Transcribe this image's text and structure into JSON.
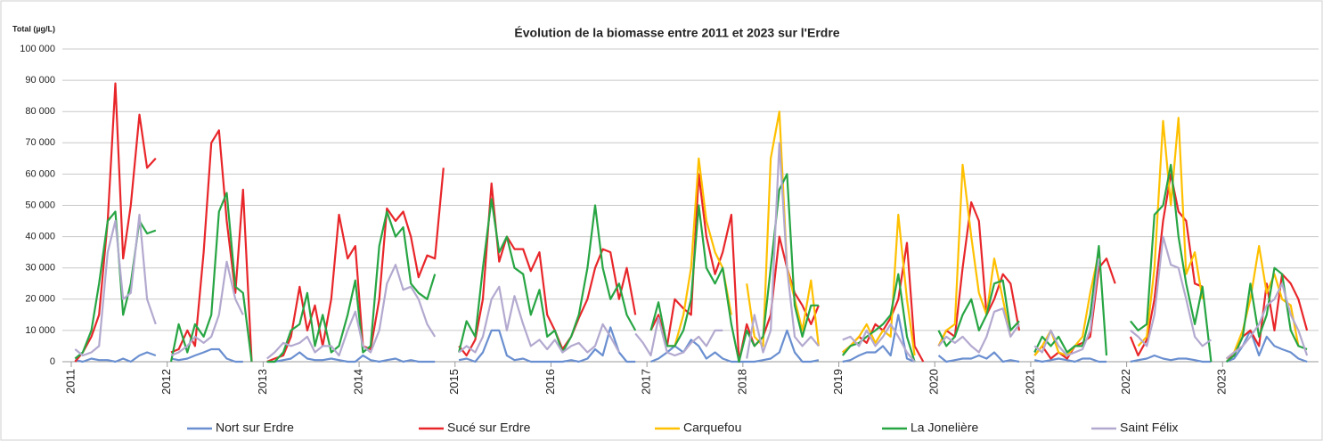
{
  "chart_data": {
    "type": "line",
    "title": "Évolution de la biomasse entre 2011 et 2023 sur l'Erdre",
    "y_label": "Total (µg/L)",
    "xlim": [
      2011,
      2024
    ],
    "xticks": [
      2011,
      2012,
      2013,
      2014,
      2015,
      2016,
      2017,
      2018,
      2019,
      2020,
      2021,
      2022,
      2023
    ],
    "ylim": [
      0,
      100000
    ],
    "yticks": [
      0,
      {
        "value": 10000,
        "label": "10 000"
      },
      {
        "value": 20000,
        "label": "20 000"
      },
      {
        "value": 30000,
        "label": "30 000"
      },
      {
        "value": 40000,
        "label": "40 000"
      },
      {
        "value": 50000,
        "label": "50 000"
      },
      {
        "value": 60000,
        "label": "60 000"
      },
      {
        "value": 70000,
        "label": "70 000"
      },
      {
        "value": 80000,
        "label": "80 000"
      },
      {
        "value": 90000,
        "label": "90 000"
      },
      {
        "value": 100000,
        "label": "100 000"
      }
    ],
    "grid": true,
    "legend": "bottom",
    "x": [
      2011.04,
      2011.12,
      2011.21,
      2011.29,
      2011.38,
      2011.46,
      2011.54,
      2011.62,
      2011.71,
      2011.79,
      2011.88,
      2011.96,
      2012.04,
      2012.12,
      2012.21,
      2012.29,
      2012.38,
      2012.46,
      2012.54,
      2012.62,
      2012.71,
      2012.79,
      2012.88,
      2012.96,
      2013.04,
      2013.12,
      2013.21,
      2013.29,
      2013.38,
      2013.46,
      2013.54,
      2013.62,
      2013.71,
      2013.79,
      2013.88,
      2013.96,
      2014.04,
      2014.12,
      2014.21,
      2014.29,
      2014.38,
      2014.46,
      2014.54,
      2014.62,
      2014.71,
      2014.79,
      2014.88,
      2014.96,
      2015.04,
      2015.12,
      2015.21,
      2015.29,
      2015.38,
      2015.46,
      2015.54,
      2015.62,
      2015.71,
      2015.79,
      2015.88,
      2015.96,
      2016.04,
      2016.12,
      2016.21,
      2016.29,
      2016.38,
      2016.46,
      2016.54,
      2016.62,
      2016.71,
      2016.79,
      2016.88,
      2016.96,
      2017.04,
      2017.12,
      2017.21,
      2017.29,
      2017.38,
      2017.46,
      2017.54,
      2017.62,
      2017.71,
      2017.79,
      2017.88,
      2017.96,
      2018.04,
      2018.12,
      2018.21,
      2018.29,
      2018.38,
      2018.46,
      2018.54,
      2018.62,
      2018.71,
      2018.79,
      2018.88,
      2018.96,
      2019.04,
      2019.12,
      2019.21,
      2019.29,
      2019.38,
      2019.46,
      2019.54,
      2019.62,
      2019.71,
      2019.79,
      2019.88,
      2019.96,
      2020.04,
      2020.12,
      2020.21,
      2020.29,
      2020.38,
      2020.46,
      2020.54,
      2020.62,
      2020.71,
      2020.79,
      2020.88,
      2020.96,
      2021.04,
      2021.12,
      2021.21,
      2021.29,
      2021.38,
      2021.46,
      2021.54,
      2021.62,
      2021.71,
      2021.79,
      2021.88,
      2021.96,
      2022.04,
      2022.12,
      2022.21,
      2022.29,
      2022.38,
      2022.46,
      2022.54,
      2022.62,
      2022.71,
      2022.79,
      2022.88,
      2022.96,
      2023.04,
      2023.12,
      2023.21,
      2023.29,
      2023.38,
      2023.46,
      2023.54,
      2023.62,
      2023.71,
      2023.79,
      2023.88,
      2023.96
    ],
    "series": [
      {
        "name": "Nort sur Erdre",
        "color": "#6a8fd0",
        "values": [
          500,
          0,
          1000,
          500,
          500,
          0,
          1000,
          0,
          2000,
          3000,
          2000,
          null,
          1000,
          500,
          1000,
          2000,
          3000,
          4000,
          4000,
          1000,
          0,
          0,
          null,
          null,
          0,
          0,
          500,
          1000,
          3000,
          1000,
          500,
          500,
          1000,
          500,
          0,
          0,
          2000,
          500,
          0,
          500,
          1000,
          0,
          500,
          0,
          0,
          0,
          null,
          null,
          500,
          1000,
          0,
          3000,
          10000,
          10000,
          2000,
          500,
          1000,
          0,
          0,
          0,
          0,
          0,
          500,
          0,
          1000,
          4000,
          2000,
          11000,
          3000,
          0,
          0,
          null,
          0,
          1000,
          3000,
          5000,
          3000,
          7000,
          5000,
          1000,
          3000,
          1000,
          0,
          0,
          0,
          0,
          500,
          1000,
          3000,
          10000,
          3000,
          0,
          0,
          500,
          null,
          null,
          0,
          500,
          2000,
          3000,
          3000,
          5000,
          2000,
          15000,
          1000,
          0,
          null,
          null,
          2000,
          0,
          500,
          1000,
          1000,
          2000,
          1000,
          3000,
          0,
          500,
          0,
          null,
          500,
          0,
          500,
          1000,
          500,
          0,
          1000,
          1000,
          0,
          0,
          null,
          null,
          0,
          500,
          1000,
          2000,
          1000,
          500,
          1000,
          1000,
          500,
          0,
          0,
          null,
          0,
          1000,
          5000,
          10000,
          2000,
          8000,
          5000,
          4000,
          3000,
          1000,
          0,
          null
        ]
      },
      {
        "name": "Sucé sur Erdre",
        "color": "#e8262a",
        "values": [
          0,
          3000,
          8000,
          15000,
          45000,
          89000,
          33000,
          50000,
          79000,
          62000,
          65000,
          null,
          3000,
          4000,
          10000,
          5000,
          35000,
          70000,
          74000,
          45000,
          22000,
          55000,
          0,
          null,
          0,
          1000,
          2000,
          8000,
          24000,
          10000,
          18000,
          5000,
          20000,
          47000,
          33000,
          37000,
          5000,
          4000,
          20000,
          49000,
          45000,
          48000,
          40000,
          27000,
          34000,
          33000,
          62000,
          null,
          5000,
          2000,
          7000,
          20000,
          57000,
          32000,
          40000,
          36000,
          36000,
          29000,
          35000,
          15000,
          10000,
          4000,
          8000,
          14000,
          20000,
          30000,
          36000,
          35000,
          20000,
          30000,
          15000,
          null,
          10000,
          15000,
          5000,
          20000,
          17000,
          15000,
          60000,
          40000,
          28000,
          35000,
          47000,
          0,
          12000,
          5000,
          8000,
          15000,
          40000,
          30000,
          22000,
          18000,
          12000,
          18000,
          null,
          null,
          3000,
          5000,
          8000,
          6000,
          12000,
          10000,
          14000,
          20000,
          38000,
          5000,
          0,
          null,
          5000,
          10000,
          8000,
          30000,
          51000,
          45000,
          15000,
          20000,
          28000,
          25000,
          10000,
          null,
          2000,
          5000,
          1000,
          3000,
          1000,
          5000,
          6000,
          8000,
          30000,
          33000,
          25000,
          null,
          8000,
          2000,
          7000,
          20000,
          45000,
          60000,
          48000,
          45000,
          25000,
          24000,
          null,
          null,
          1000,
          2000,
          8000,
          10000,
          5000,
          25000,
          10000,
          28000,
          25000,
          20000,
          10000,
          null
        ]
      },
      {
        "name": "Carquefou",
        "color": "#ffc000",
        "values": [
          null,
          null,
          null,
          null,
          null,
          null,
          null,
          null,
          null,
          null,
          null,
          null,
          null,
          null,
          null,
          null,
          null,
          null,
          null,
          null,
          null,
          null,
          null,
          null,
          null,
          null,
          null,
          null,
          null,
          null,
          null,
          null,
          null,
          null,
          null,
          null,
          null,
          null,
          null,
          null,
          null,
          null,
          null,
          null,
          null,
          null,
          null,
          null,
          null,
          null,
          null,
          null,
          null,
          null,
          null,
          null,
          null,
          null,
          null,
          null,
          null,
          null,
          null,
          null,
          null,
          null,
          null,
          null,
          null,
          null,
          null,
          null,
          null,
          null,
          5000,
          5000,
          15000,
          30000,
          65000,
          45000,
          35000,
          30000,
          15000,
          null,
          25000,
          8000,
          5000,
          65000,
          80000,
          30000,
          20000,
          10000,
          26000,
          5000,
          null,
          null,
          3000,
          5000,
          8000,
          12000,
          6000,
          10000,
          8000,
          47000,
          20000,
          2000,
          null,
          null,
          5000,
          10000,
          12000,
          63000,
          40000,
          22000,
          15000,
          33000,
          20000,
          8000,
          null,
          null,
          2000,
          5000,
          10000,
          3000,
          2000,
          5000,
          8000,
          22000,
          35000,
          null,
          null,
          null,
          null,
          5000,
          8000,
          30000,
          77000,
          50000,
          78000,
          28000,
          35000,
          20000,
          null,
          null,
          1000,
          3000,
          10000,
          20000,
          37000,
          22000,
          28000,
          20000,
          18000,
          5000,
          null,
          null
        ]
      },
      {
        "name": "La Jonelière",
        "color": "#27a543",
        "values": [
          1000,
          3000,
          10000,
          25000,
          45000,
          48000,
          15000,
          25000,
          45000,
          41000,
          42000,
          null,
          0,
          12000,
          3000,
          12000,
          8000,
          15000,
          48000,
          54000,
          24000,
          22000,
          0,
          null,
          0,
          0,
          3000,
          10000,
          12000,
          22000,
          5000,
          15000,
          3000,
          5000,
          15000,
          26000,
          3000,
          5000,
          37000,
          48000,
          40000,
          43000,
          25000,
          22000,
          20000,
          28000,
          null,
          null,
          3000,
          13000,
          8000,
          30000,
          52000,
          35000,
          40000,
          30000,
          28000,
          15000,
          23000,
          8000,
          10000,
          3000,
          8000,
          15000,
          30000,
          50000,
          30000,
          20000,
          25000,
          15000,
          10000,
          null,
          10000,
          19000,
          5000,
          5000,
          10000,
          20000,
          50000,
          30000,
          25000,
          30000,
          12000,
          0,
          10000,
          5000,
          8000,
          30000,
          55000,
          60000,
          18000,
          8000,
          18000,
          18000,
          null,
          null,
          2000,
          5000,
          6000,
          8000,
          10000,
          12000,
          15000,
          28000,
          8000,
          0,
          null,
          null,
          10000,
          5000,
          8000,
          15000,
          20000,
          10000,
          15000,
          25000,
          26000,
          10000,
          13000,
          null,
          3000,
          8000,
          5000,
          8000,
          3000,
          5000,
          5000,
          15000,
          37000,
          2000,
          null,
          null,
          13000,
          10000,
          12000,
          47000,
          50000,
          63000,
          40000,
          25000,
          12000,
          24000,
          0,
          null,
          0,
          2000,
          8000,
          25000,
          8000,
          15000,
          30000,
          28000,
          10000,
          5000,
          4000,
          null
        ]
      },
      {
        "name": "Saint Félix",
        "color": "#b3a9cf",
        "values": [
          4000,
          2000,
          3000,
          5000,
          35000,
          45000,
          20000,
          22000,
          47000,
          20000,
          12000,
          null,
          2000,
          3000,
          5000,
          8000,
          6000,
          8000,
          15000,
          32000,
          20000,
          15000,
          null,
          null,
          1000,
          3000,
          6000,
          5000,
          6000,
          8000,
          3000,
          5000,
          5000,
          2000,
          10000,
          16000,
          5000,
          3000,
          10000,
          25000,
          31000,
          23000,
          24000,
          20000,
          12000,
          8000,
          null,
          null,
          3000,
          5000,
          3000,
          8000,
          20000,
          24000,
          10000,
          21000,
          12000,
          5000,
          7000,
          4000,
          7000,
          3000,
          5000,
          6000,
          3000,
          5000,
          12000,
          8000,
          3000,
          null,
          9000,
          6000,
          2000,
          14000,
          3000,
          2000,
          3000,
          6000,
          8000,
          5000,
          10000,
          10000,
          null,
          null,
          1000,
          15000,
          3000,
          10000,
          70000,
          30000,
          8000,
          5000,
          8000,
          5000,
          null,
          null,
          7000,
          8000,
          5000,
          10000,
          5000,
          8000,
          12000,
          8000,
          3000,
          0,
          null,
          null,
          5000,
          8000,
          6000,
          8000,
          5000,
          3000,
          8000,
          16000,
          17000,
          8000,
          12000,
          null,
          5000,
          3000,
          10000,
          5000,
          2000,
          3000,
          4000,
          10000,
          33000,
          null,
          null,
          null,
          10000,
          8000,
          5000,
          15000,
          40000,
          31000,
          30000,
          20000,
          8000,
          5000,
          7000,
          null,
          1000,
          3000,
          5000,
          8000,
          12000,
          18000,
          20000,
          25000,
          15000,
          10000,
          2000,
          null
        ]
      }
    ]
  }
}
